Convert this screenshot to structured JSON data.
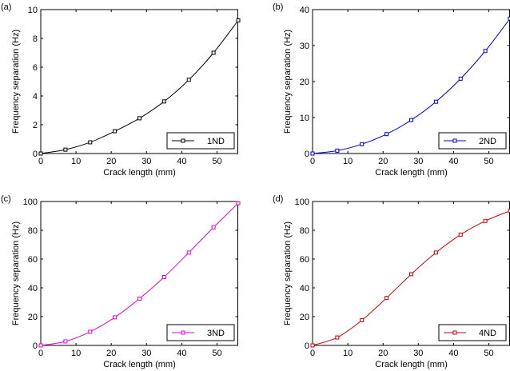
{
  "chart_data": [
    {
      "type": "line",
      "panel_label": "(a)",
      "xlabel": "Crack length (mm)",
      "ylabel": "Frequency separation (Hz)",
      "xlim": [
        0,
        56
      ],
      "ylim": [
        0,
        10
      ],
      "xticks": [
        "0",
        "10",
        "20",
        "30",
        "40",
        "50"
      ],
      "yticks": [
        "0",
        "2",
        "4",
        "6",
        "8",
        "10"
      ],
      "color": "#000000",
      "legend_position": "bottom-right",
      "series": [
        {
          "name": "1ND",
          "x": [
            0,
            7,
            14,
            21,
            28,
            35,
            42,
            49,
            56
          ],
          "values": [
            0.0,
            0.27,
            0.78,
            1.55,
            2.45,
            3.62,
            5.12,
            7.0,
            9.25
          ]
        }
      ]
    },
    {
      "type": "line",
      "panel_label": "(b)",
      "xlabel": "Crack length (mm)",
      "ylabel": "Frequency separation (Hz)",
      "xlim": [
        0,
        56
      ],
      "ylim": [
        0,
        40
      ],
      "xticks": [
        "0",
        "10",
        "20",
        "30",
        "40",
        "50"
      ],
      "yticks": [
        "0",
        "10",
        "20",
        "30",
        "40"
      ],
      "color": "#0000cc",
      "legend_position": "bottom-right",
      "series": [
        {
          "name": "2ND",
          "x": [
            0,
            7,
            14,
            21,
            28,
            35,
            42,
            49,
            56
          ],
          "values": [
            0.0,
            0.8,
            2.6,
            5.4,
            9.3,
            14.4,
            20.8,
            28.5,
            37.5
          ]
        }
      ]
    },
    {
      "type": "line",
      "panel_label": "(c)",
      "xlabel": "Crack length (mm)",
      "ylabel": "Frequency separation (Hz)",
      "xlim": [
        0,
        56
      ],
      "ylim": [
        0,
        100
      ],
      "xticks": [
        "0",
        "10",
        "20",
        "30",
        "40",
        "50"
      ],
      "yticks": [
        "0",
        "20",
        "40",
        "60",
        "80",
        "100"
      ],
      "color": "#dd00dd",
      "legend_position": "bottom-right",
      "series": [
        {
          "name": "3ND",
          "x": [
            0,
            7,
            14,
            21,
            28,
            35,
            42,
            49,
            56
          ],
          "values": [
            0.0,
            2.8,
            9.5,
            19.5,
            32.5,
            47.5,
            64.5,
            82.0,
            98.8
          ]
        }
      ]
    },
    {
      "type": "line",
      "panel_label": "(d)",
      "xlabel": "Crack length (mm)",
      "ylabel": "Frequency separation (Hz)",
      "xlim": [
        0,
        56
      ],
      "ylim": [
        0,
        100
      ],
      "xticks": [
        "0",
        "10",
        "20",
        "30",
        "40",
        "50"
      ],
      "yticks": [
        "0",
        "20",
        "40",
        "60",
        "80",
        "100"
      ],
      "color": "#cc0000",
      "legend_position": "bottom-right",
      "series": [
        {
          "name": "4ND",
          "x": [
            0,
            7,
            14,
            21,
            28,
            35,
            42,
            49,
            56
          ],
          "values": [
            0.0,
            5.5,
            17.5,
            33.0,
            49.5,
            64.5,
            77.0,
            86.5,
            93.5
          ]
        }
      ]
    }
  ]
}
